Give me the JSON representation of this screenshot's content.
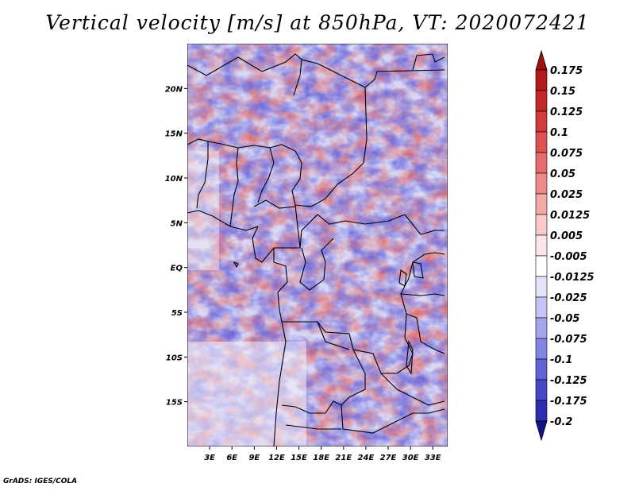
{
  "title": "Vertical velocity [m/s] at 850hPa, VT: 2020072421",
  "credit": "GrADS: IGES/COLA",
  "map": {
    "lon_range": [
      0,
      35
    ],
    "lat_range": [
      -20,
      25
    ],
    "lon_ticks": [
      {
        "value": 3,
        "label": "3E"
      },
      {
        "value": 6,
        "label": "6E"
      },
      {
        "value": 9,
        "label": "9E"
      },
      {
        "value": 12,
        "label": "12E"
      },
      {
        "value": 15,
        "label": "15E"
      },
      {
        "value": 18,
        "label": "18E"
      },
      {
        "value": 21,
        "label": "21E"
      },
      {
        "value": 24,
        "label": "24E"
      },
      {
        "value": 27,
        "label": "27E"
      },
      {
        "value": 30,
        "label": "30E"
      },
      {
        "value": 33,
        "label": "33E"
      }
    ],
    "lat_ticks": [
      {
        "value": 20,
        "label": "20N"
      },
      {
        "value": 15,
        "label": "15N"
      },
      {
        "value": 10,
        "label": "10N"
      },
      {
        "value": 5,
        "label": "5N"
      },
      {
        "value": 0,
        "label": "EQ"
      },
      {
        "value": -5,
        "label": "5S"
      },
      {
        "value": -10,
        "label": "10S"
      },
      {
        "value": -15,
        "label": "15S"
      }
    ]
  },
  "colorbar": {
    "levels": [
      {
        "label": "0.175",
        "color": "#b31b1b"
      },
      {
        "label": "0.15",
        "color": "#c42727"
      },
      {
        "label": "0.125",
        "color": "#d33a3a"
      },
      {
        "label": "0.1",
        "color": "#e05050"
      },
      {
        "label": "0.075",
        "color": "#e96a6a"
      },
      {
        "label": "0.05",
        "color": "#f08a8a"
      },
      {
        "label": "0.025",
        "color": "#f6a9a9"
      },
      {
        "label": "0.0125",
        "color": "#fbcaca"
      },
      {
        "label": "0.005",
        "color": "#fde6e6"
      },
      {
        "label": "-0.005",
        "color": "#ffffff"
      },
      {
        "label": "-0.0125",
        "color": "#e3e3fb"
      },
      {
        "label": "-0.025",
        "color": "#c6c6f6"
      },
      {
        "label": "-0.05",
        "color": "#a5a5ef"
      },
      {
        "label": "-0.075",
        "color": "#8484e6"
      },
      {
        "label": "-0.1",
        "color": "#6262d8"
      },
      {
        "label": "-0.125",
        "color": "#4646c8"
      },
      {
        "label": "-0.175",
        "color": "#2d2db4"
      },
      {
        "label": "-0.2",
        "color": "#1c1c9a"
      }
    ],
    "top_color": "#a01010",
    "bottom_color": "#141488"
  }
}
